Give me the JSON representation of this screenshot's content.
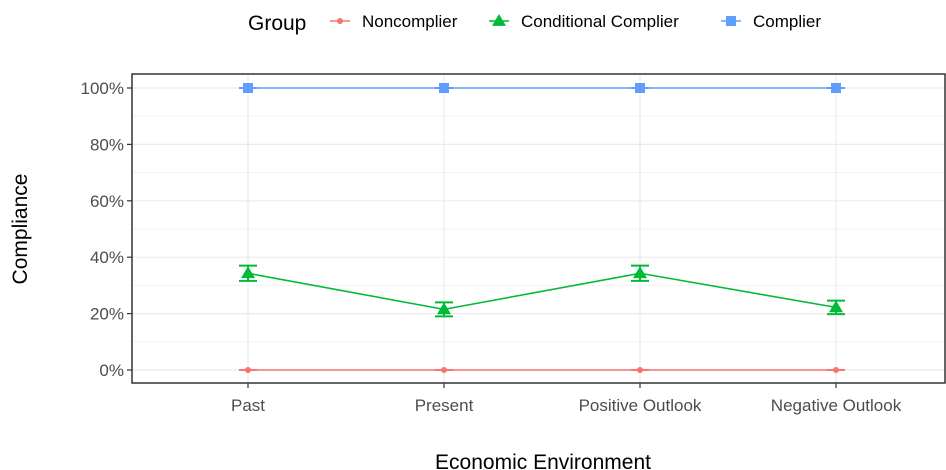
{
  "chart_data": {
    "type": "line",
    "xlabel": "Economic Environment",
    "ylabel": "Compliance",
    "categories": [
      "Past",
      "Present",
      "Positive Outlook",
      "Negative Outlook"
    ],
    "ylim": [
      0,
      100
    ],
    "yticks": [
      0,
      20,
      40,
      60,
      80,
      100
    ],
    "ytick_labels": [
      "0%",
      "20%",
      "40%",
      "60%",
      "80%",
      "100%"
    ],
    "grid": true,
    "legend": {
      "title": "Group",
      "position": "top",
      "entries": [
        "Noncomplier",
        "Conditional Complier",
        "Complier"
      ]
    },
    "series": [
      {
        "name": "Noncomplier",
        "color": "#F8766D",
        "marker": "circle",
        "values": [
          0,
          0,
          0,
          0
        ],
        "error_low": [
          0,
          0,
          0,
          0
        ],
        "error_high": [
          0,
          0,
          0,
          0
        ]
      },
      {
        "name": "Conditional Complier",
        "color": "#00BA38",
        "marker": "triangle",
        "values": [
          34.3,
          21.5,
          34.3,
          22.2
        ],
        "error_low": [
          31.6,
          19.0,
          31.6,
          19.8
        ],
        "error_high": [
          37.0,
          24.0,
          37.0,
          24.6
        ]
      },
      {
        "name": "Complier",
        "color": "#619CFF",
        "marker": "square",
        "values": [
          100,
          100,
          100,
          100
        ],
        "error_low": [
          100,
          100,
          100,
          100
        ],
        "error_high": [
          100,
          100,
          100,
          100
        ]
      }
    ]
  }
}
